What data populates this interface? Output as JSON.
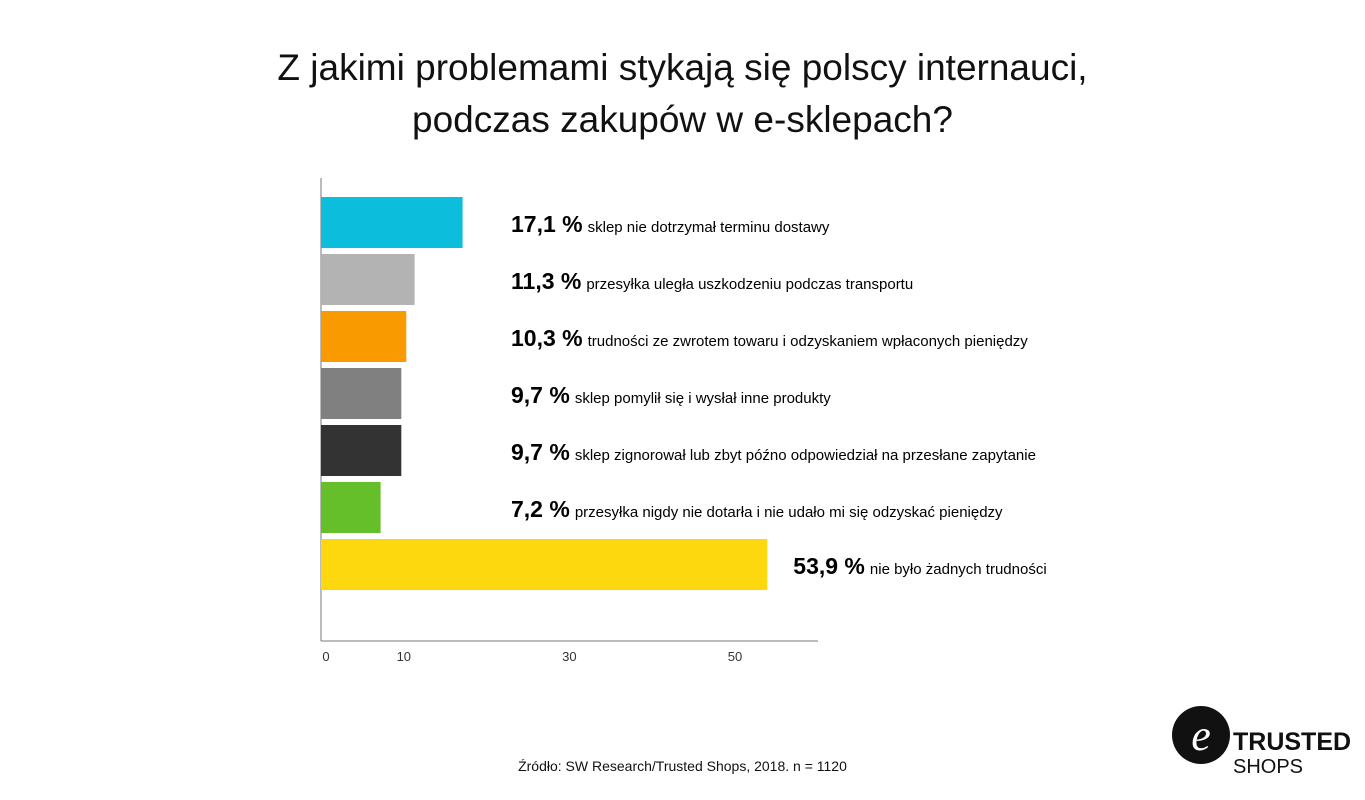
{
  "title_line1": "Z jakimi problemami stykają się polscy internauci,",
  "title_line2": "podczas zakupów w e-sklepach?",
  "chart_data": {
    "type": "bar",
    "orientation": "horizontal",
    "xlim": [
      0,
      60
    ],
    "xticks": [
      0,
      10,
      30,
      50
    ],
    "bars": [
      {
        "value": 17.1,
        "value_label": "17,1 %",
        "label": "sklep nie dotrzymał terminu dostawy",
        "color": "#0dbedc"
      },
      {
        "value": 11.3,
        "value_label": "11,3 %",
        "label": "przesyłka uległa uszkodzeniu podczas transportu",
        "color": "#b3b3b3"
      },
      {
        "value": 10.3,
        "value_label": "10,3 %",
        "label": "trudności ze zwrotem towaru i odzyskaniem wpłaconych pieniędzy",
        "color": "#f99a00"
      },
      {
        "value": 9.7,
        "value_label": "9,7 %",
        "label": "sklep pomylił się i wysłał inne produkty",
        "color": "#808080"
      },
      {
        "value": 9.7,
        "value_label": "9,7 %",
        "label": "sklep zignorował lub zbyt późno odpowiedział na przesłane zapytanie",
        "color": "#333333"
      },
      {
        "value": 7.2,
        "value_label": "7,2 %",
        "label": "przesyłka nigdy nie dotarła i nie udało mi się odzyskać pieniędzy",
        "color": "#64bf2b"
      },
      {
        "value": 53.9,
        "value_label": "53,9 %",
        "label": "nie było żadnych trudności",
        "color": "#fdd80f"
      }
    ],
    "grid": false,
    "legend": "none"
  },
  "source": "Źródło: SW Research/Trusted Shops, 2018. n = 1120",
  "logo": {
    "line1": "TRUSTED",
    "line2": "SHOPS",
    "mark": "e",
    "icon": "trusted-shops-logo"
  }
}
